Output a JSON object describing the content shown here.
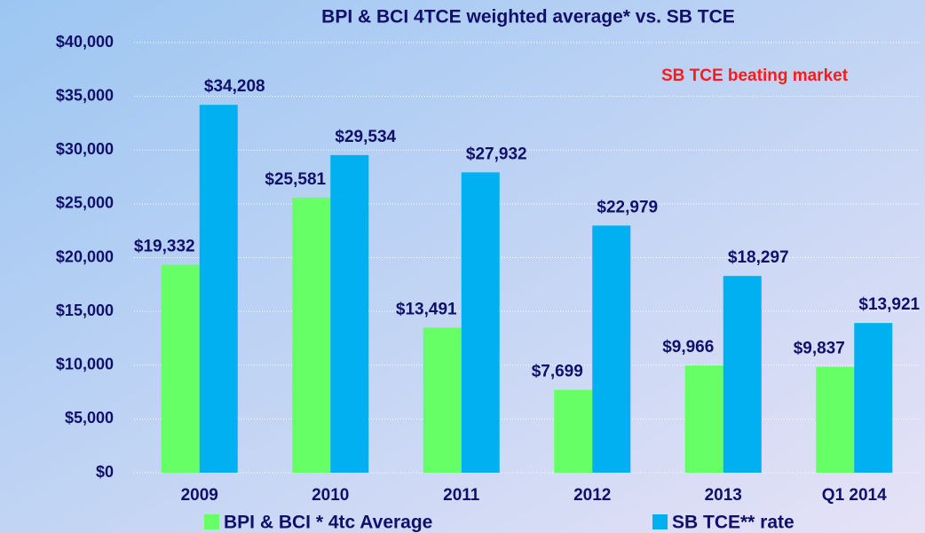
{
  "chart_data": {
    "type": "bar",
    "title": "BPI & BCI 4TCE weighted  average*  vs. SB TCE",
    "annotation": "SB TCE beating market",
    "categories": [
      "2009",
      "2010",
      "2011",
      "2012",
      "2013",
      "Q1 2014"
    ],
    "series": [
      {
        "name": "BPI & BCI * 4tc Average",
        "color": "#66ff66",
        "values": [
          19332,
          25581,
          13491,
          7699,
          9966,
          9837
        ],
        "value_labels": [
          "$19,332",
          "$25,581",
          "$13,491",
          "$7,699",
          "$9,966",
          "$9,837"
        ]
      },
      {
        "name": "SB TCE** rate",
        "color": "#00b0f0",
        "values": [
          34208,
          29534,
          27932,
          22979,
          18297,
          13921
        ],
        "value_labels": [
          "$34,208",
          "$29,534",
          "$27,932",
          "$22,979",
          "$18,297",
          "$13,921"
        ]
      }
    ],
    "ylim": [
      0,
      40000
    ],
    "yticks": [
      {
        "value": 0,
        "label": "$0"
      },
      {
        "value": 5000,
        "label": "$5,000"
      },
      {
        "value": 10000,
        "label": "$10,000"
      },
      {
        "value": 15000,
        "label": "$15,000"
      },
      {
        "value": 20000,
        "label": "$20,000"
      },
      {
        "value": 25000,
        "label": "$25,000"
      },
      {
        "value": 30000,
        "label": "$30,000"
      },
      {
        "value": 35000,
        "label": "$35,000"
      },
      {
        "value": 40000,
        "label": "$40,000"
      }
    ],
    "grid": true,
    "legend": "bottom"
  }
}
